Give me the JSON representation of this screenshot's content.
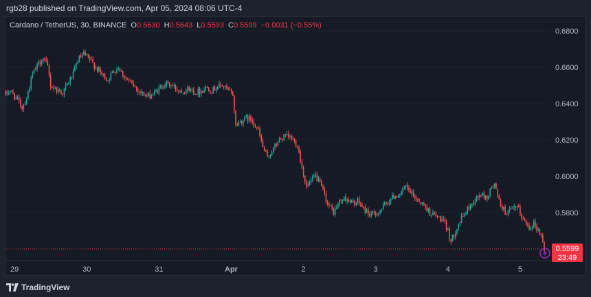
{
  "header": {
    "published_line": "rgb28 published on TradingView.com, Apr 05, 2024 08:06 UTC-4"
  },
  "legend": {
    "symbol": "Cardano / TetherUS, 30, BINANCE",
    "open_key": "O",
    "open": "0.5630",
    "high_key": "H",
    "high": "0.5643",
    "low_key": "L",
    "low": "0.5593",
    "close_key": "C",
    "close": "0.5599",
    "change": "−0.0031 (−0.55%)"
  },
  "price_label": {
    "price": "0.5599",
    "countdown": "23:49"
  },
  "footer": {
    "brand": "TradingView"
  },
  "colors": {
    "up": "#26a69a",
    "down": "#ef5350",
    "accent": "#f23645",
    "grid": "#2a2e39"
  },
  "chart_data": {
    "type": "candlestick",
    "title": "Cardano / TetherUS, 30, BINANCE",
    "interval_minutes": 30,
    "y_ticks": [
      "0.5800",
      "0.6000",
      "0.6200",
      "0.6400",
      "0.6600",
      "0.6800"
    ],
    "ylim": [
      0.555,
      0.6875
    ],
    "x_ticks": [
      "29",
      "30",
      "31",
      "Apr",
      "2",
      "3",
      "4",
      "5"
    ],
    "x_range": [
      "2024-03-28T21:00",
      "2024-04-05T08:00"
    ],
    "current_price": 0.5599,
    "anchors": [
      [
        "2024-03-28T21:00",
        0.645
      ],
      [
        "2024-03-28T22:30",
        0.647
      ],
      [
        "2024-03-29T01:00",
        0.642
      ],
      [
        "2024-03-29T02:30",
        0.638
      ],
      [
        "2024-03-29T04:00",
        0.643
      ],
      [
        "2024-03-29T06:00",
        0.656
      ],
      [
        "2024-03-29T08:00",
        0.662
      ],
      [
        "2024-03-29T09:30",
        0.665
      ],
      [
        "2024-03-29T11:00",
        0.66
      ],
      [
        "2024-03-29T12:00",
        0.65
      ],
      [
        "2024-03-29T13:30",
        0.648
      ],
      [
        "2024-03-29T16:00",
        0.646
      ],
      [
        "2024-03-29T18:00",
        0.652
      ],
      [
        "2024-03-29T19:30",
        0.656
      ],
      [
        "2024-03-29T21:00",
        0.664
      ],
      [
        "2024-03-29T23:00",
        0.667
      ],
      [
        "2024-03-30T01:00",
        0.664
      ],
      [
        "2024-03-30T03:00",
        0.66
      ],
      [
        "2024-03-30T05:00",
        0.656
      ],
      [
        "2024-03-30T07:00",
        0.653
      ],
      [
        "2024-03-30T09:00",
        0.658
      ],
      [
        "2024-03-30T10:30",
        0.66
      ],
      [
        "2024-03-30T12:00",
        0.656
      ],
      [
        "2024-03-30T14:00",
        0.652
      ],
      [
        "2024-03-30T16:00",
        0.649
      ],
      [
        "2024-03-30T18:00",
        0.646
      ],
      [
        "2024-03-30T20:00",
        0.644
      ],
      [
        "2024-03-30T22:00",
        0.645
      ],
      [
        "2024-03-31T00:00",
        0.648
      ],
      [
        "2024-03-31T02:00",
        0.651
      ],
      [
        "2024-03-31T04:00",
        0.65
      ],
      [
        "2024-03-31T06:00",
        0.648
      ],
      [
        "2024-03-31T08:00",
        0.647
      ],
      [
        "2024-03-31T10:00",
        0.648
      ],
      [
        "2024-03-31T12:00",
        0.646
      ],
      [
        "2024-03-31T14:00",
        0.647
      ],
      [
        "2024-03-31T16:00",
        0.649
      ],
      [
        "2024-03-31T17:30",
        0.647
      ],
      [
        "2024-03-31T19:00",
        0.649
      ],
      [
        "2024-03-31T21:00",
        0.65
      ],
      [
        "2024-03-31T23:00",
        0.647
      ],
      [
        "2024-04-01T00:30",
        0.645
      ],
      [
        "2024-04-01T01:30",
        0.628
      ],
      [
        "2024-04-01T03:00",
        0.63
      ],
      [
        "2024-04-01T05:00",
        0.632
      ],
      [
        "2024-04-01T07:00",
        0.631
      ],
      [
        "2024-04-01T09:00",
        0.625
      ],
      [
        "2024-04-01T10:30",
        0.616
      ],
      [
        "2024-04-01T12:00",
        0.61
      ],
      [
        "2024-04-01T14:00",
        0.615
      ],
      [
        "2024-04-01T16:00",
        0.62
      ],
      [
        "2024-04-01T18:00",
        0.622
      ],
      [
        "2024-04-01T20:00",
        0.621
      ],
      [
        "2024-04-01T22:00",
        0.617
      ],
      [
        "2024-04-01T23:30",
        0.605
      ],
      [
        "2024-04-02T01:00",
        0.594
      ],
      [
        "2024-04-02T02:30",
        0.597
      ],
      [
        "2024-04-02T04:00",
        0.6
      ],
      [
        "2024-04-02T06:00",
        0.594
      ],
      [
        "2024-04-02T08:00",
        0.585
      ],
      [
        "2024-04-02T10:00",
        0.58
      ],
      [
        "2024-04-02T12:00",
        0.586
      ],
      [
        "2024-04-02T14:00",
        0.588
      ],
      [
        "2024-04-02T16:00",
        0.585
      ],
      [
        "2024-04-02T18:00",
        0.586
      ],
      [
        "2024-04-02T20:00",
        0.582
      ],
      [
        "2024-04-02T22:00",
        0.579
      ],
      [
        "2024-04-03T00:00",
        0.579
      ],
      [
        "2024-04-03T02:00",
        0.582
      ],
      [
        "2024-04-03T04:00",
        0.586
      ],
      [
        "2024-04-03T06:00",
        0.589
      ],
      [
        "2024-04-03T08:00",
        0.59
      ],
      [
        "2024-04-03T10:00",
        0.594
      ],
      [
        "2024-04-03T12:00",
        0.59
      ],
      [
        "2024-04-03T14:00",
        0.587
      ],
      [
        "2024-04-03T16:00",
        0.584
      ],
      [
        "2024-04-03T18:00",
        0.58
      ],
      [
        "2024-04-03T20:00",
        0.578
      ],
      [
        "2024-04-03T22:00",
        0.576
      ],
      [
        "2024-04-04T00:00",
        0.57
      ],
      [
        "2024-04-04T01:00",
        0.564
      ],
      [
        "2024-04-04T03:00",
        0.572
      ],
      [
        "2024-04-04T05:00",
        0.578
      ],
      [
        "2024-04-04T07:00",
        0.583
      ],
      [
        "2024-04-04T09:00",
        0.587
      ],
      [
        "2024-04-04T11:00",
        0.59
      ],
      [
        "2024-04-04T13:00",
        0.588
      ],
      [
        "2024-04-04T14:30",
        0.594
      ],
      [
        "2024-04-04T15:30",
        0.595
      ],
      [
        "2024-04-04T17:00",
        0.586
      ],
      [
        "2024-04-04T19:00",
        0.58
      ],
      [
        "2024-04-04T21:00",
        0.581
      ],
      [
        "2024-04-04T23:00",
        0.583
      ],
      [
        "2024-04-05T01:00",
        0.576
      ],
      [
        "2024-04-05T03:00",
        0.572
      ],
      [
        "2024-04-05T04:30",
        0.574
      ],
      [
        "2024-04-05T06:00",
        0.57
      ],
      [
        "2024-04-05T07:00",
        0.567
      ],
      [
        "2024-04-05T08:00",
        0.5599
      ]
    ]
  }
}
